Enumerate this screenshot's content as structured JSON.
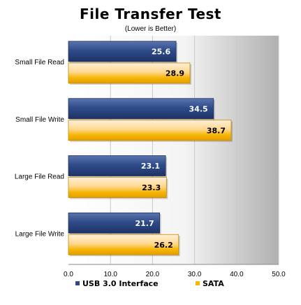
{
  "chart_data": {
    "type": "bar",
    "orientation": "horizontal",
    "title": "File Transfer Test",
    "subtitle": "(Lower is Better)",
    "categories": [
      "Small File Read",
      "Small File Write",
      "Large File Read",
      "Large File Write"
    ],
    "series": [
      {
        "name": "USB 3.0 Interface",
        "values": [
          25.6,
          34.5,
          23.1,
          21.7
        ],
        "color": "#2e4a86",
        "label_color": "#ffffff"
      },
      {
        "name": "SATA",
        "values": [
          28.9,
          38.7,
          23.3,
          26.2
        ],
        "color": "#f5b800",
        "label_color": "#000000"
      }
    ],
    "xlim": [
      0,
      50
    ],
    "xticks": [
      "0.0",
      "10.0",
      "20.0",
      "30.0",
      "40.0",
      "50.0"
    ],
    "grid": true,
    "legend_position": "bottom",
    "background_gradient": [
      "#ffffff",
      "#b4b4b4"
    ]
  }
}
